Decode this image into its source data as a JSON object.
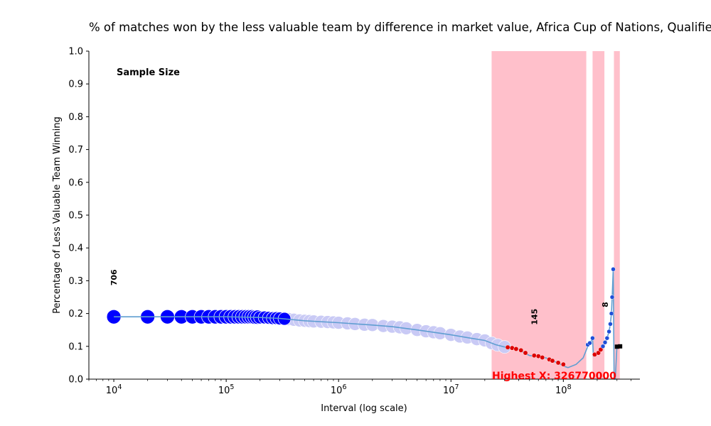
{
  "chart_data": {
    "type": "scatter",
    "title": "% of matches won by the less valuable team by difference in market value, Africa Cup of Nations, Qualifiers",
    "xlabel": "Interval (log scale)",
    "ylabel": "Percentage of Less Valuable Team Winning",
    "x_scale": "log",
    "xlim": [
      6000,
      480000000
    ],
    "ylim": [
      0,
      1.0
    ],
    "y_ticks": [
      0,
      0.1,
      0.2,
      0.3,
      0.4,
      0.5,
      0.6,
      0.7,
      0.8,
      0.9,
      1.0
    ],
    "y_tick_labels": [
      "0.0",
      "0.1",
      "0.2",
      "0.3",
      "0.4",
      "0.5",
      "0.6",
      "0.7",
      "0.8",
      "0.9",
      "1.0"
    ],
    "x_ticks": [
      10000,
      100000,
      1000000,
      10000000,
      100000000
    ],
    "x_tick_labels": [
      {
        "base": "10",
        "exp": "4"
      },
      {
        "base": "10",
        "exp": "5"
      },
      {
        "base": "10",
        "exp": "6"
      },
      {
        "base": "10",
        "exp": "7"
      },
      {
        "base": "10",
        "exp": "8"
      }
    ],
    "grid": false,
    "sample_size_label": "Sample Size",
    "shaded_x_ranges": [
      [
        23000000,
        160000000
      ],
      [
        182000000,
        232000000
      ],
      [
        282000000,
        318000000
      ]
    ],
    "shade_color": "#ffc0cb",
    "sample_size_annotations": [
      {
        "x": 10000,
        "y": 0.31,
        "text": "706"
      },
      {
        "x": 55000000,
        "y": 0.19,
        "text": "145"
      },
      {
        "x": 235000000,
        "y": 0.227,
        "text": "8"
      }
    ],
    "highest_x_label": "Highest X: 326770000",
    "highest_x_color": "#ff0000",
    "line_color": "#5f9ed1",
    "line_points": [
      [
        10000,
        0.19
      ],
      [
        20000,
        0.19
      ],
      [
        50000,
        0.19
      ],
      [
        100000,
        0.19
      ],
      [
        200000,
        0.188
      ],
      [
        300000,
        0.185
      ],
      [
        500000,
        0.178
      ],
      [
        1000000,
        0.172
      ],
      [
        2000000,
        0.165
      ],
      [
        3000000,
        0.16
      ],
      [
        5000000,
        0.15
      ],
      [
        8000000,
        0.14
      ],
      [
        10000000,
        0.135
      ],
      [
        15000000,
        0.125
      ],
      [
        20000000,
        0.118
      ],
      [
        25000000,
        0.105
      ],
      [
        30000000,
        0.098
      ],
      [
        35000000,
        0.095
      ],
      [
        40000000,
        0.09
      ],
      [
        45000000,
        0.08
      ],
      [
        50000000,
        0.072
      ],
      [
        60000000,
        0.068
      ],
      [
        70000000,
        0.065
      ],
      [
        80000000,
        0.055
      ],
      [
        90000000,
        0.05
      ],
      [
        100000000,
        0.04
      ],
      [
        110000000,
        0.035
      ],
      [
        130000000,
        0.045
      ],
      [
        150000000,
        0.065
      ],
      [
        165000000,
        0.1
      ],
      [
        175000000,
        0.112
      ],
      [
        182000000,
        0.125
      ],
      [
        185000000,
        0.07
      ],
      [
        200000000,
        0.075
      ],
      [
        215000000,
        0.09
      ],
      [
        225000000,
        0.1
      ],
      [
        235000000,
        0.11
      ],
      [
        245000000,
        0.125
      ],
      [
        255000000,
        0.145
      ],
      [
        262000000,
        0.168
      ],
      [
        268000000,
        0.2
      ],
      [
        272000000,
        0.25
      ],
      [
        278000000,
        0.335
      ],
      [
        283000000,
        0.0
      ],
      [
        290000000,
        0.0
      ],
      [
        300000000,
        0.1
      ]
    ],
    "big_point_color": "#0000ff",
    "big_points": [
      {
        "x": 10000,
        "y": 0.19,
        "r": 10
      },
      {
        "x": 20000,
        "y": 0.19,
        "r": 10
      },
      {
        "x": 30000,
        "y": 0.19,
        "r": 10
      },
      {
        "x": 40000,
        "y": 0.19,
        "r": 10
      },
      {
        "x": 50000,
        "y": 0.19,
        "r": 10
      },
      {
        "x": 60000,
        "y": 0.19,
        "r": 10
      },
      {
        "x": 70000,
        "y": 0.19,
        "r": 10
      },
      {
        "x": 80000,
        "y": 0.19,
        "r": 10
      },
      {
        "x": 90000,
        "y": 0.19,
        "r": 10
      },
      {
        "x": 100000,
        "y": 0.19,
        "r": 10
      },
      {
        "x": 110000,
        "y": 0.19,
        "r": 10
      },
      {
        "x": 120000,
        "y": 0.19,
        "r": 10
      },
      {
        "x": 130000,
        "y": 0.19,
        "r": 10
      },
      {
        "x": 140000,
        "y": 0.19,
        "r": 10
      },
      {
        "x": 150000,
        "y": 0.19,
        "r": 10
      },
      {
        "x": 160000,
        "y": 0.19,
        "r": 10
      },
      {
        "x": 170000,
        "y": 0.19,
        "r": 10
      },
      {
        "x": 180000,
        "y": 0.189,
        "r": 10
      },
      {
        "x": 190000,
        "y": 0.189,
        "r": 10
      },
      {
        "x": 200000,
        "y": 0.188,
        "r": 9
      },
      {
        "x": 220000,
        "y": 0.188,
        "r": 9
      },
      {
        "x": 240000,
        "y": 0.187,
        "r": 9
      },
      {
        "x": 260000,
        "y": 0.186,
        "r": 9
      },
      {
        "x": 280000,
        "y": 0.186,
        "r": 9
      },
      {
        "x": 300000,
        "y": 0.185,
        "r": 9
      },
      {
        "x": 330000,
        "y": 0.184,
        "r": 9
      }
    ],
    "faded_point_color": "#c9caf5",
    "faded_points": [
      {
        "x": 360000,
        "y": 0.183
      },
      {
        "x": 400000,
        "y": 0.181
      },
      {
        "x": 450000,
        "y": 0.179
      },
      {
        "x": 500000,
        "y": 0.178
      },
      {
        "x": 550000,
        "y": 0.177
      },
      {
        "x": 600000,
        "y": 0.176
      },
      {
        "x": 700000,
        "y": 0.175
      },
      {
        "x": 800000,
        "y": 0.174
      },
      {
        "x": 900000,
        "y": 0.173
      },
      {
        "x": 1000000,
        "y": 0.172
      },
      {
        "x": 1200000,
        "y": 0.17
      },
      {
        "x": 1400000,
        "y": 0.168
      },
      {
        "x": 1700000,
        "y": 0.166
      },
      {
        "x": 2000000,
        "y": 0.165
      },
      {
        "x": 2500000,
        "y": 0.162
      },
      {
        "x": 3000000,
        "y": 0.16
      },
      {
        "x": 3500000,
        "y": 0.158
      },
      {
        "x": 4000000,
        "y": 0.155
      },
      {
        "x": 5000000,
        "y": 0.15
      },
      {
        "x": 6000000,
        "y": 0.146
      },
      {
        "x": 7000000,
        "y": 0.143
      },
      {
        "x": 8000000,
        "y": 0.14
      },
      {
        "x": 10000000,
        "y": 0.135
      },
      {
        "x": 12000000,
        "y": 0.13
      },
      {
        "x": 14000000,
        "y": 0.127
      },
      {
        "x": 17000000,
        "y": 0.122
      },
      {
        "x": 20000000,
        "y": 0.118
      },
      {
        "x": 23000000,
        "y": 0.11
      },
      {
        "x": 26000000,
        "y": 0.104
      },
      {
        "x": 30000000,
        "y": 0.098
      }
    ],
    "red_point_color": "#dd0000",
    "red_points": [
      {
        "x": 32000000,
        "y": 0.097
      },
      {
        "x": 35000000,
        "y": 0.095
      },
      {
        "x": 38000000,
        "y": 0.092
      },
      {
        "x": 42000000,
        "y": 0.088
      },
      {
        "x": 46000000,
        "y": 0.08
      },
      {
        "x": 55000000,
        "y": 0.072
      },
      {
        "x": 60000000,
        "y": 0.07
      },
      {
        "x": 65000000,
        "y": 0.066
      },
      {
        "x": 75000000,
        "y": 0.06
      },
      {
        "x": 80000000,
        "y": 0.056
      },
      {
        "x": 90000000,
        "y": 0.05
      },
      {
        "x": 100000000,
        "y": 0.045
      },
      {
        "x": 190000000,
        "y": 0.075
      },
      {
        "x": 205000000,
        "y": 0.08
      },
      {
        "x": 215000000,
        "y": 0.09
      }
    ],
    "small_blue_color": "#1f4fd8",
    "small_blue_points": [
      {
        "x": 165000000,
        "y": 0.105
      },
      {
        "x": 172000000,
        "y": 0.11
      },
      {
        "x": 182000000,
        "y": 0.125
      },
      {
        "x": 225000000,
        "y": 0.1
      },
      {
        "x": 235000000,
        "y": 0.112
      },
      {
        "x": 245000000,
        "y": 0.125
      },
      {
        "x": 255000000,
        "y": 0.145
      },
      {
        "x": 262000000,
        "y": 0.168
      },
      {
        "x": 268000000,
        "y": 0.2
      },
      {
        "x": 272000000,
        "y": 0.25
      },
      {
        "x": 278000000,
        "y": 0.335
      }
    ],
    "black_points": [
      {
        "x": 300000000,
        "y": 0.099
      },
      {
        "x": 320000000,
        "y": 0.1
      }
    ]
  }
}
